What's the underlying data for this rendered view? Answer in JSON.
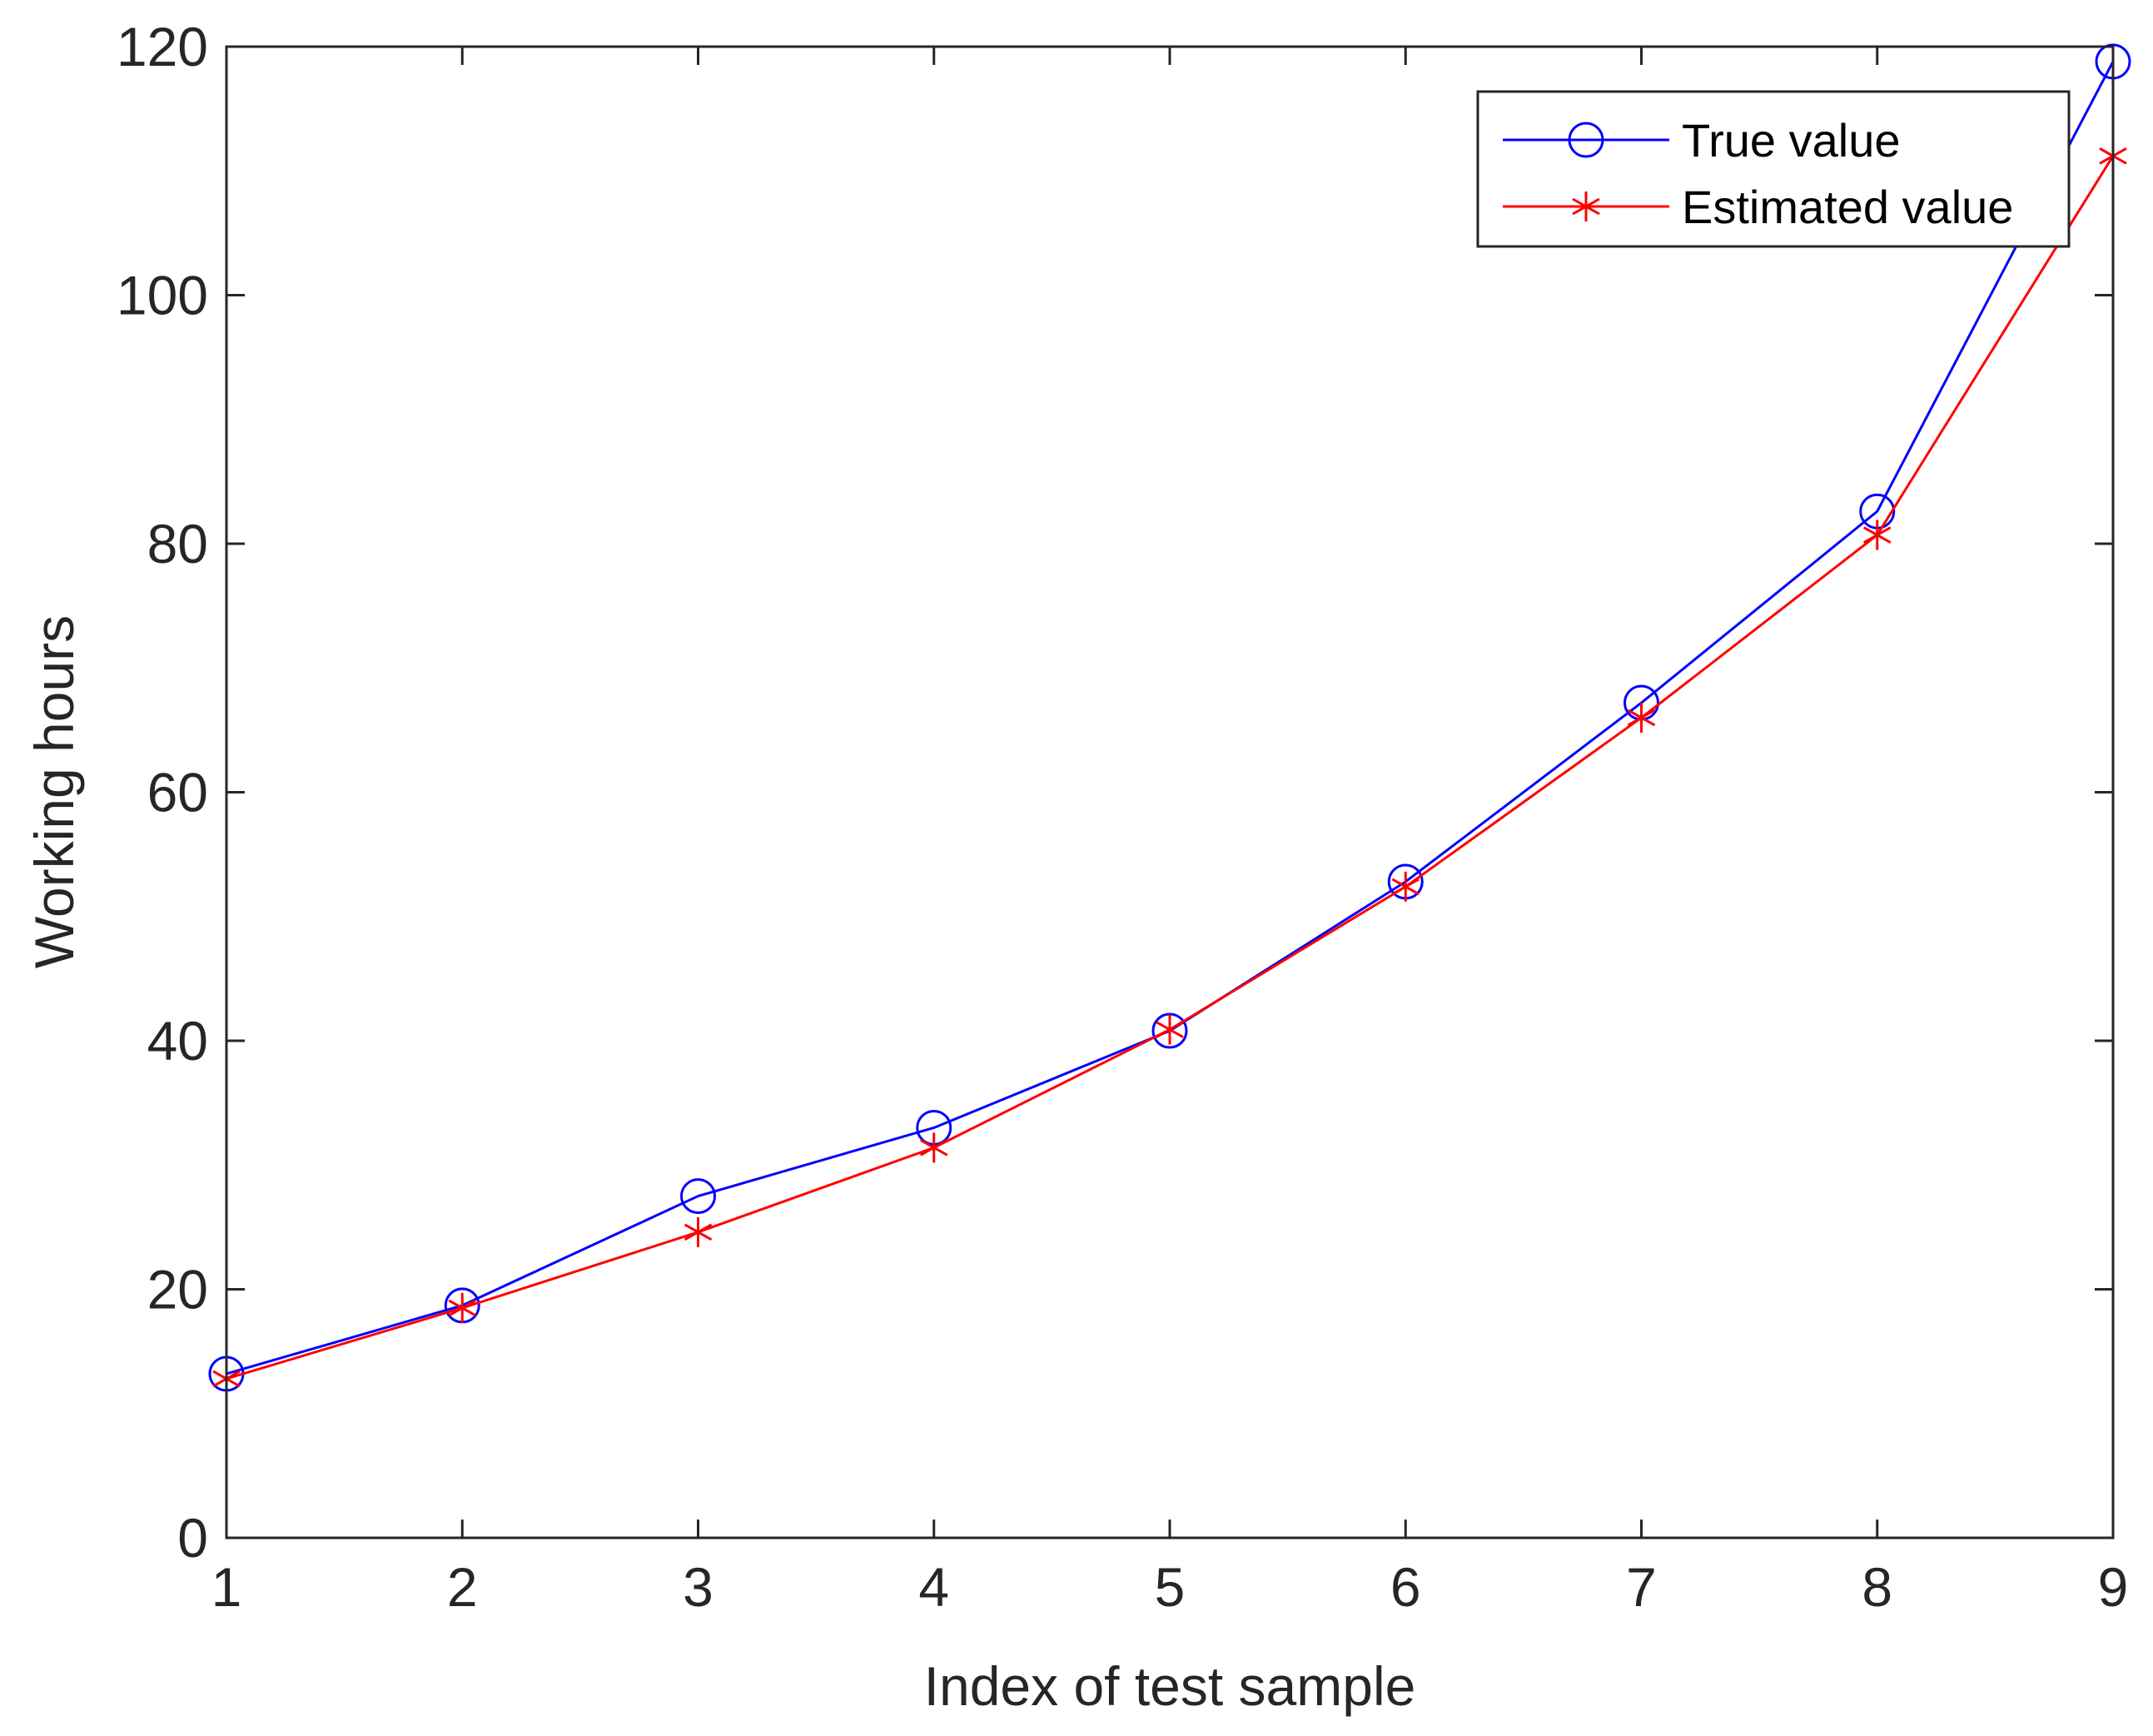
{
  "chart_data": {
    "type": "line",
    "title": "",
    "xlabel": "Index of test sample",
    "ylabel": "Working hours",
    "xlim": [
      1,
      9
    ],
    "ylim": [
      0,
      120
    ],
    "grid": false,
    "x": [
      1,
      2,
      3,
      4,
      5,
      6,
      7,
      8,
      9
    ],
    "x_ticks": [
      "1",
      "2",
      "3",
      "4",
      "5",
      "6",
      "7",
      "8",
      "9"
    ],
    "y_ticks": [
      "0",
      "20",
      "40",
      "60",
      "80",
      "100",
      "120"
    ],
    "series": [
      {
        "name": "True value",
        "color": "#0000ff",
        "marker": "circle",
        "values": [
          13.2,
          18.7,
          27.5,
          33.0,
          40.8,
          52.8,
          67.2,
          82.6,
          118.8
        ]
      },
      {
        "name": "Estimated value",
        "color": "#ff0000",
        "marker": "asterisk",
        "values": [
          12.8,
          18.5,
          24.6,
          31.4,
          40.9,
          52.4,
          66.0,
          80.7,
          111.2
        ]
      }
    ],
    "legend": {
      "position": "top-right",
      "entries": [
        "True value",
        "Estimated value"
      ]
    }
  }
}
